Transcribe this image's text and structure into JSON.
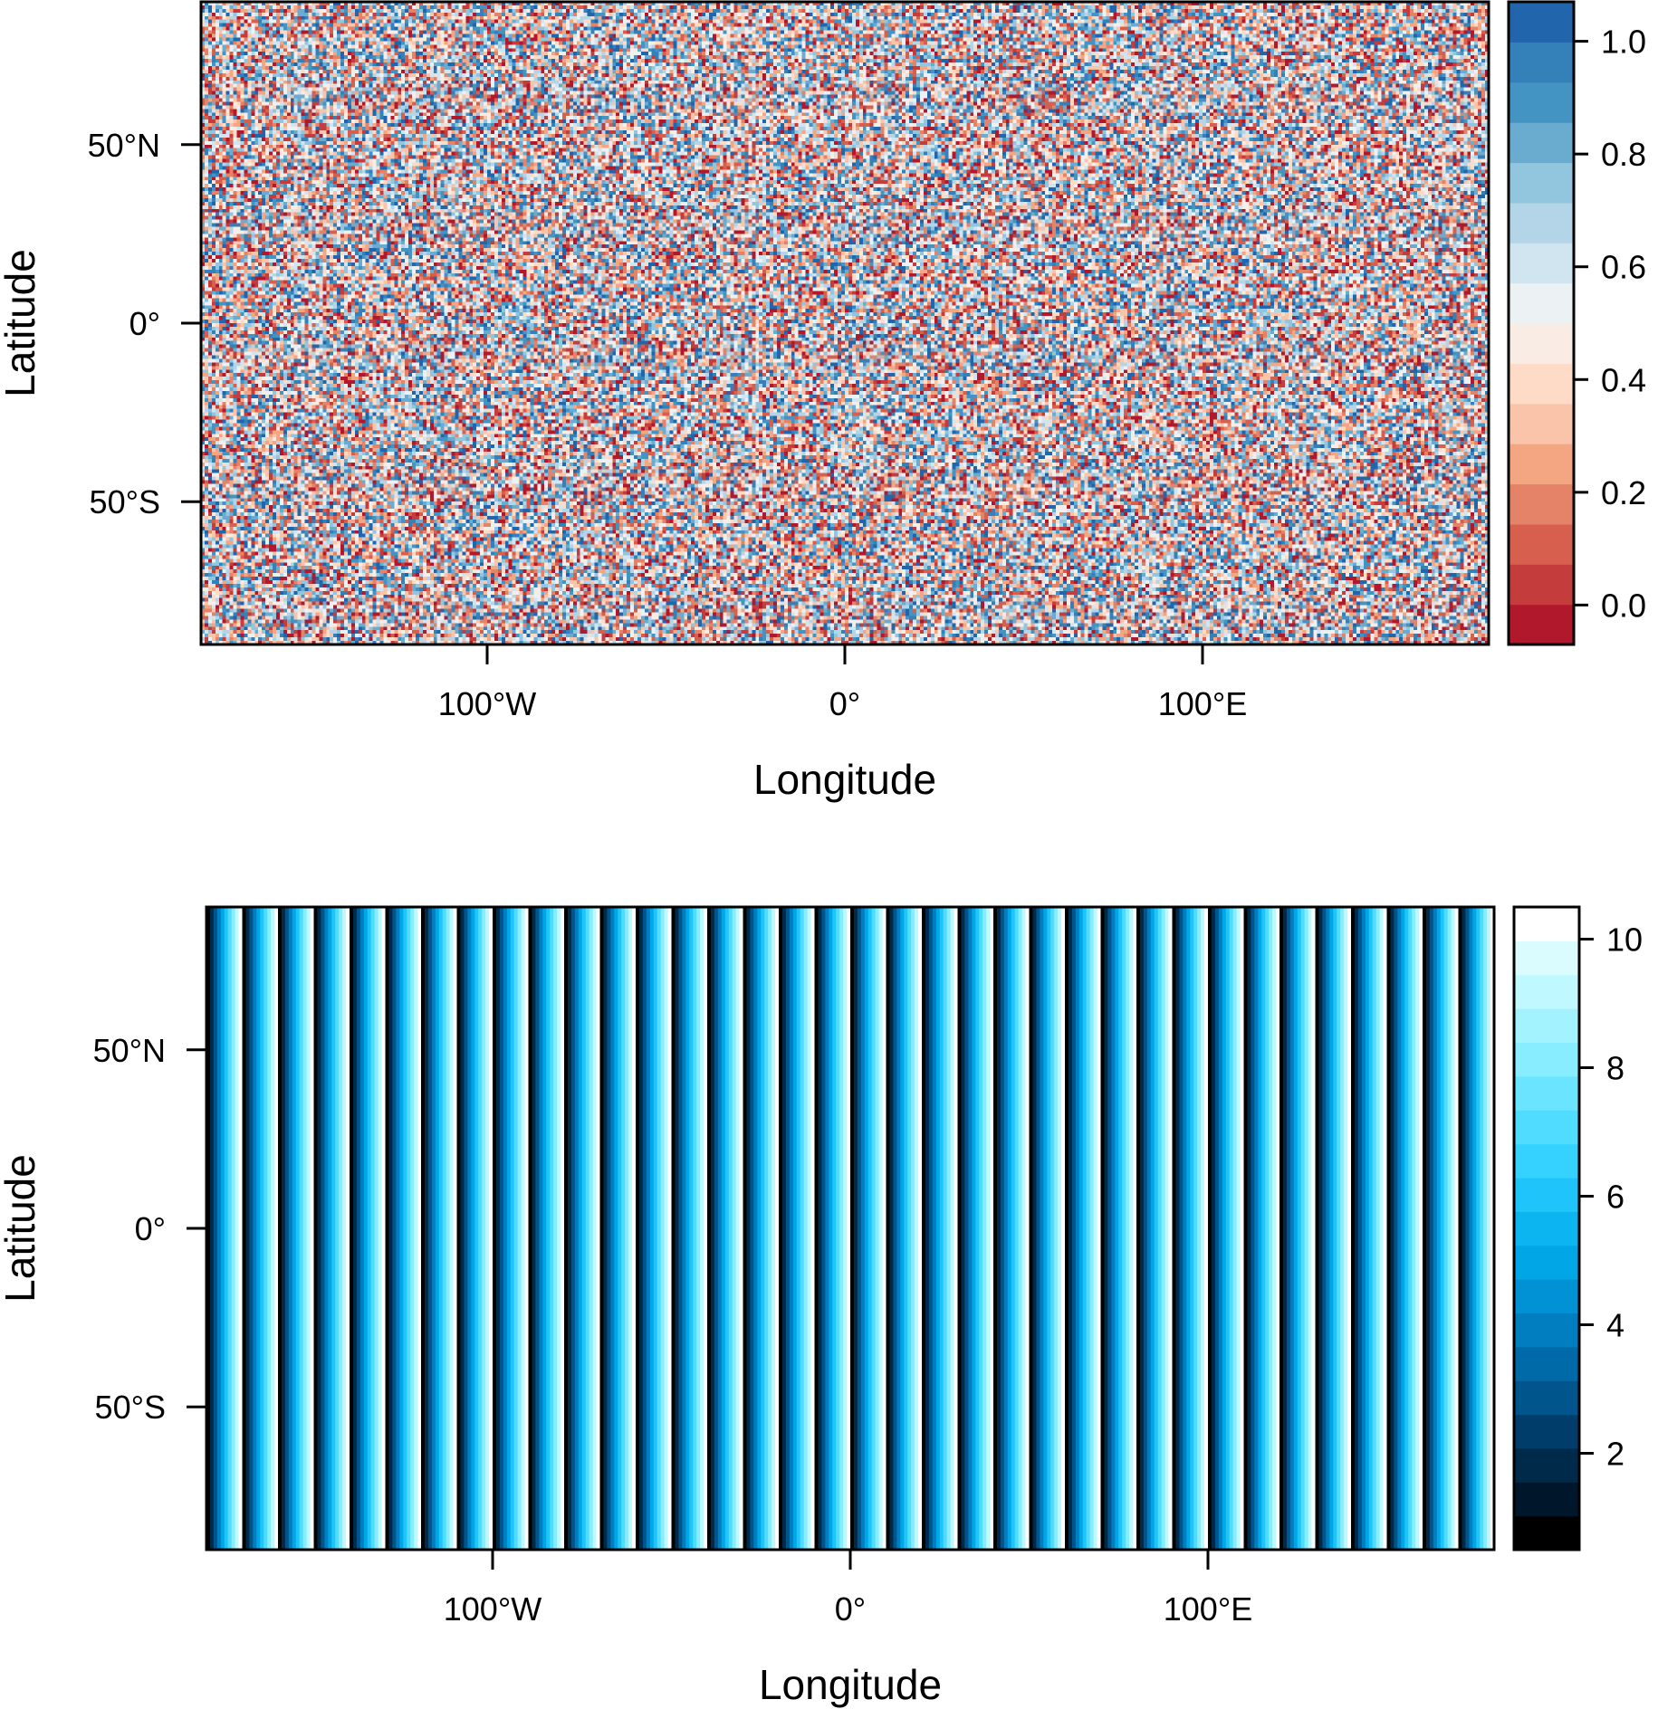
{
  "chart_data": [
    {
      "type": "heatmap",
      "title": "",
      "xlabel": "Longitude",
      "ylabel": "Latitude",
      "xlim": [
        -180,
        180
      ],
      "ylim": [
        -90,
        90
      ],
      "x_ticks": [
        {
          "value": -100,
          "label": "100°W"
        },
        {
          "value": 0,
          "label": "0°"
        },
        {
          "value": 100,
          "label": "100°E"
        }
      ],
      "y_ticks": [
        {
          "value": 50,
          "label": "50°N"
        },
        {
          "value": 0,
          "label": "0°"
        },
        {
          "value": -50,
          "label": "50°S"
        }
      ],
      "pattern": "uniform random noise",
      "value_range": [
        -0.07,
        1.07
      ],
      "grid_cells": {
        "x": 360,
        "y": 180
      },
      "colorbar": {
        "range": [
          -0.07,
          1.07
        ],
        "colors": [
          "#b2182b",
          "#c43c3c",
          "#d6604d",
          "#e58368",
          "#f4a582",
          "#f9c4a9",
          "#fddbc7",
          "#f9ece4",
          "#ecf1f4",
          "#d1e5f0",
          "#b4d5e7",
          "#92c5de",
          "#6aacd0",
          "#4393c3",
          "#3480b9",
          "#2166ac"
        ],
        "ticks": [
          {
            "value": 0.0,
            "label": "0.0"
          },
          {
            "value": 0.2,
            "label": "0.2"
          },
          {
            "value": 0.4,
            "label": "0.4"
          },
          {
            "value": 0.6,
            "label": "0.6"
          },
          {
            "value": 0.8,
            "label": "0.8"
          },
          {
            "value": 1.0,
            "label": "1.0"
          }
        ]
      },
      "grid": false,
      "legend_position": "right"
    },
    {
      "type": "heatmap",
      "title": "",
      "xlabel": "Longitude",
      "ylabel": "Latitude",
      "xlim": [
        -180,
        180
      ],
      "ylim": [
        -90,
        90
      ],
      "x_ticks": [
        {
          "value": -100,
          "label": "100°W"
        },
        {
          "value": 0,
          "label": "0°"
        },
        {
          "value": 100,
          "label": "100°E"
        }
      ],
      "y_ticks": [
        {
          "value": 50,
          "label": "50°N"
        },
        {
          "value": 0,
          "label": "0°"
        },
        {
          "value": -50,
          "label": "50°S"
        }
      ],
      "pattern": "value repeats 1 to 10 along longitude, constant along latitude",
      "stripe_values": [
        1,
        2,
        3,
        4,
        5,
        6,
        7,
        8,
        9,
        10
      ],
      "stripe_period_degrees": 10,
      "value_range": [
        0.5,
        10.5
      ],
      "colorbar": {
        "range": [
          0.5,
          10.5
        ],
        "colors": [
          "#000000",
          "#00172b",
          "#002a4a",
          "#003d6b",
          "#00558d",
          "#006aa8",
          "#007ebf",
          "#0092d4",
          "#00a6e6",
          "#0cb4f0",
          "#1fc4fa",
          "#36d2ff",
          "#4fdcff",
          "#6be5ff",
          "#87edff",
          "#a3f3ff",
          "#bff8ff",
          "#dbfcff",
          "#ffffff"
        ],
        "ticks": [
          {
            "value": 2,
            "label": "2"
          },
          {
            "value": 4,
            "label": "4"
          },
          {
            "value": 6,
            "label": "6"
          },
          {
            "value": 8,
            "label": "8"
          },
          {
            "value": 10,
            "label": "10"
          }
        ]
      },
      "grid": false,
      "legend_position": "right"
    }
  ]
}
